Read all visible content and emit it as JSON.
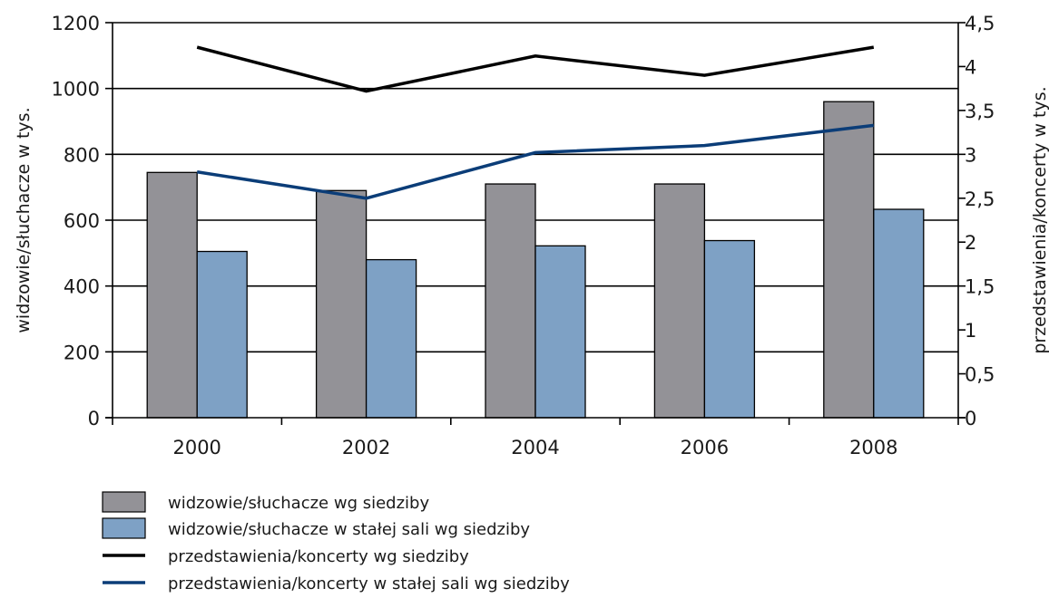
{
  "chart_data": {
    "type": "bar",
    "categories": [
      "2000",
      "2002",
      "2004",
      "2006",
      "2008"
    ],
    "ylabel": "widzowie/słuchacze w tys.",
    "y2label": "przedstawienia/koncerty w tys.",
    "ylim": [
      0,
      1200
    ],
    "y2lim": [
      0,
      4.5
    ],
    "yticks": [
      "0",
      "200",
      "400",
      "600",
      "800",
      "1000",
      "1200"
    ],
    "y2ticks": [
      "0",
      "0,5",
      "1",
      "1,5",
      "2",
      "2,5",
      "3",
      "3,5",
      "4",
      "4,5"
    ],
    "grid": "horizontal at major left-axis ticks",
    "legend_position": "bottom",
    "series": [
      {
        "name": "widzowie/słuchacze wg siedziby",
        "type": "bar",
        "axis": "left",
        "color": "#939297",
        "values": [
          745,
          690,
          710,
          710,
          960
        ]
      },
      {
        "name": "widzowie/słuchacze w stałej sali wg siedziby",
        "type": "bar",
        "axis": "left",
        "color": "#7ea1c5",
        "values": [
          505,
          480,
          522,
          538,
          633
        ]
      },
      {
        "name": "przedstawienia/koncerty wg siedziby",
        "type": "line",
        "axis": "right",
        "color": "#000000",
        "values": [
          4.22,
          3.72,
          4.12,
          3.9,
          4.22
        ]
      },
      {
        "name": "przedstawienia/koncerty w stałej sali wg siedziby",
        "type": "line",
        "axis": "right",
        "color": "#0b3d78",
        "values": [
          2.8,
          2.5,
          3.02,
          3.1,
          3.33
        ]
      }
    ]
  }
}
